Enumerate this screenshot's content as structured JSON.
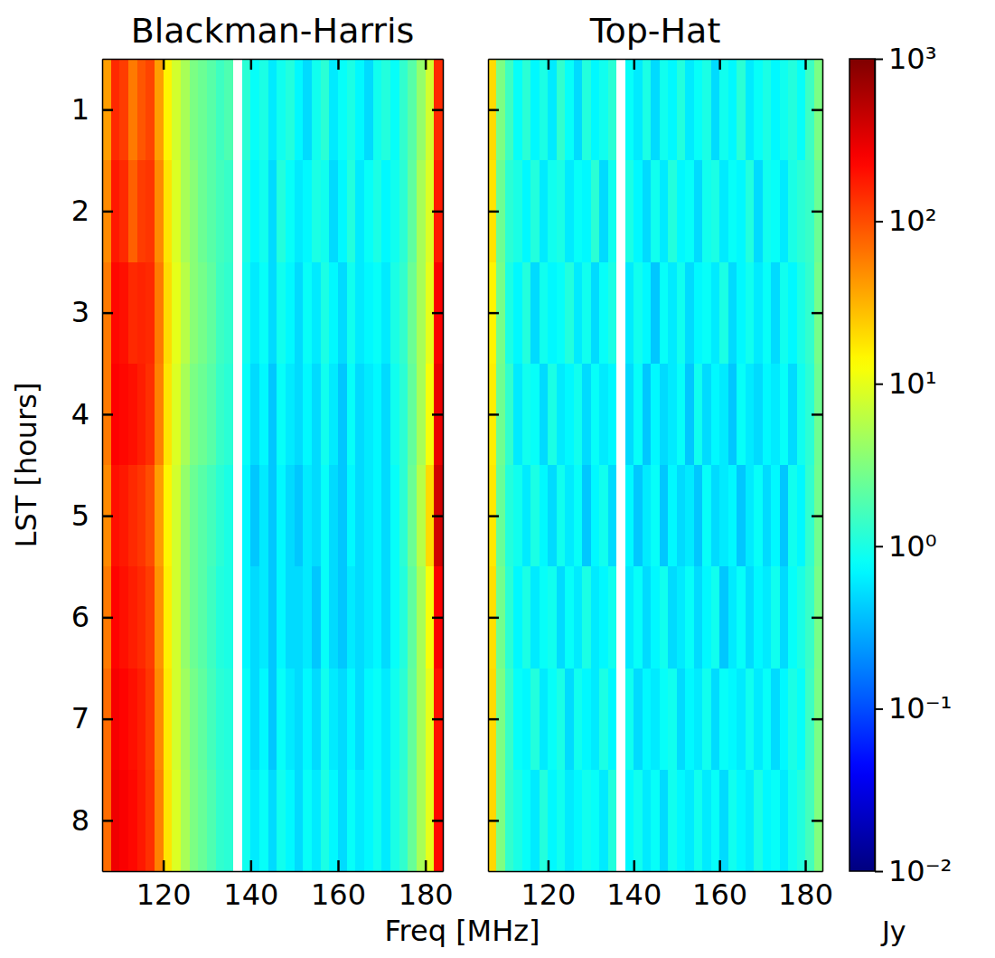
{
  "chart_data": {
    "type": "heatmap",
    "xlabel": "Freq [MHz]",
    "ylabel": "LST [hours]",
    "colorbar": {
      "log": true,
      "lim": [
        0.01,
        1000
      ],
      "ticks": [
        {
          "value": 0.01,
          "label": "10⁻²"
        },
        {
          "value": 0.1,
          "label": "10⁻¹"
        },
        {
          "value": 1,
          "label": "10⁰"
        },
        {
          "value": 10,
          "label": "10¹"
        },
        {
          "value": 100,
          "label": "10²"
        },
        {
          "value": 1000,
          "label": "10³"
        }
      ],
      "label": "Jy"
    },
    "panels": [
      {
        "title": "Blackman-Harris",
        "xlim": [
          106,
          184
        ],
        "ylim": [
          8.5,
          0.5
        ],
        "xticks": [
          120,
          140,
          160,
          180
        ],
        "yticks": [
          1,
          2,
          3,
          4,
          5,
          6,
          7,
          8
        ],
        "x_bins": [
          106,
          108,
          110,
          112,
          114,
          116,
          118,
          120,
          122,
          124,
          126,
          128,
          130,
          132,
          134,
          136,
          138,
          140,
          142,
          144,
          146,
          148,
          150,
          152,
          154,
          156,
          158,
          160,
          162,
          164,
          166,
          168,
          170,
          172,
          174,
          176,
          178,
          180,
          182,
          184
        ],
        "y_bins": [
          0.5,
          1.5,
          2.5,
          3.5,
          4.5,
          5.5,
          6.5,
          7.5,
          8.5
        ],
        "values": [
          [
            40,
            150,
            120,
            60,
            90,
            110,
            40,
            15,
            8,
            5,
            3,
            2.5,
            2,
            1.5,
            1.8,
            null,
            1.2,
            0.8,
            1.0,
            0.6,
            0.9,
            1.1,
            0.7,
            0.5,
            0.9,
            1.2,
            0.6,
            0.8,
            1.0,
            0.7,
            0.5,
            0.9,
            1.1,
            0.8,
            1.3,
            2,
            4,
            8,
            150
          ],
          [
            50,
            180,
            150,
            80,
            120,
            130,
            50,
            18,
            9,
            5,
            3.5,
            2.5,
            2,
            1.6,
            1.4,
            null,
            1.0,
            0.7,
            0.9,
            0.5,
            1.1,
            0.8,
            0.6,
            0.7,
            1.0,
            0.9,
            0.5,
            0.7,
            1.1,
            0.6,
            0.8,
            1.0,
            0.7,
            0.9,
            1.2,
            2.2,
            5,
            9,
            180
          ],
          [
            60,
            220,
            200,
            150,
            160,
            150,
            60,
            20,
            10,
            6,
            3.5,
            2.8,
            2.2,
            1.5,
            1.3,
            null,
            0.9,
            0.6,
            0.8,
            0.5,
            0.9,
            0.7,
            0.5,
            0.8,
            0.6,
            1.0,
            0.7,
            0.5,
            0.9,
            0.6,
            0.7,
            0.8,
            0.6,
            1.0,
            1.3,
            2.5,
            5,
            10,
            250
          ],
          [
            60,
            240,
            220,
            200,
            170,
            140,
            55,
            18,
            9,
            5,
            3,
            2.5,
            2,
            1.4,
            1.2,
            null,
            0.8,
            0.5,
            0.7,
            0.4,
            0.8,
            0.6,
            0.5,
            0.7,
            0.5,
            0.9,
            0.6,
            0.4,
            0.8,
            0.5,
            0.6,
            0.7,
            0.5,
            0.9,
            1.2,
            2.3,
            5,
            12,
            300
          ],
          [
            50,
            200,
            180,
            150,
            130,
            100,
            40,
            15,
            8,
            4,
            2.5,
            2,
            1.6,
            1.2,
            1.0,
            null,
            0.7,
            0.4,
            0.6,
            0.4,
            0.7,
            0.5,
            0.4,
            0.6,
            0.5,
            0.8,
            0.5,
            0.4,
            0.7,
            0.5,
            0.6,
            0.7,
            0.5,
            0.8,
            1.2,
            2.5,
            6,
            20,
            400
          ],
          [
            60,
            230,
            200,
            170,
            150,
            120,
            45,
            16,
            8,
            4,
            2.5,
            2,
            1.5,
            1.1,
            1.0,
            null,
            0.7,
            0.5,
            0.6,
            0.4,
            0.7,
            0.5,
            0.5,
            0.6,
            0.4,
            0.8,
            0.5,
            0.4,
            0.6,
            0.5,
            0.6,
            0.7,
            0.5,
            0.8,
            1.1,
            2.2,
            5,
            12,
            250
          ],
          [
            70,
            260,
            230,
            200,
            170,
            130,
            50,
            17,
            8,
            4.5,
            2.8,
            2.2,
            1.6,
            1.2,
            1.1,
            null,
            0.8,
            0.5,
            0.7,
            0.4,
            0.8,
            0.6,
            0.5,
            0.7,
            0.5,
            0.9,
            0.6,
            0.5,
            0.7,
            0.5,
            0.7,
            0.8,
            0.6,
            0.9,
            1.2,
            2.3,
            5,
            10,
            200
          ],
          [
            70,
            280,
            250,
            220,
            180,
            140,
            55,
            18,
            9,
            5,
            3,
            2.4,
            1.8,
            1.3,
            1.2,
            null,
            0.9,
            0.6,
            0.8,
            0.5,
            0.9,
            0.7,
            0.5,
            0.8,
            0.6,
            1.0,
            0.7,
            0.5,
            0.8,
            0.6,
            0.7,
            0.9,
            0.6,
            1.0,
            1.3,
            2.4,
            5,
            10,
            220
          ]
        ]
      },
      {
        "title": "Top-Hat",
        "tick_labels": "x",
        "xlim": [
          106,
          184
        ],
        "ylim": [
          8.5,
          0.5
        ],
        "xticks": [
          120,
          140,
          160,
          180
        ],
        "yticks": [
          1,
          2,
          3,
          4,
          5,
          6,
          7,
          8
        ],
        "x_bins": [
          106,
          108,
          110,
          112,
          114,
          116,
          118,
          120,
          122,
          124,
          126,
          128,
          130,
          132,
          134,
          136,
          138,
          140,
          142,
          144,
          146,
          148,
          150,
          152,
          154,
          156,
          158,
          160,
          162,
          164,
          166,
          168,
          170,
          172,
          174,
          176,
          178,
          180,
          182,
          184
        ],
        "y_bins": [
          0.5,
          1.5,
          2.5,
          3.5,
          4.5,
          5.5,
          6.5,
          7.5,
          8.5
        ],
        "values": [
          [
            20,
            3,
            1.5,
            0.8,
            1.2,
            0.7,
            1.0,
            0.6,
            1.3,
            0.8,
            0.5,
            1.1,
            0.7,
            0.9,
            1.2,
            null,
            0.8,
            0.6,
            1.0,
            0.5,
            0.9,
            0.7,
            1.1,
            0.6,
            0.8,
            1.0,
            0.5,
            0.9,
            0.7,
            1.2,
            0.6,
            0.8,
            1.0,
            0.7,
            0.9,
            1.1,
            0.8,
            1.5,
            3
          ],
          [
            18,
            2.5,
            1.2,
            1.0,
            0.7,
            1.1,
            0.6,
            0.9,
            1.0,
            0.6,
            0.8,
            0.7,
            1.2,
            0.5,
            0.9,
            null,
            1.0,
            0.7,
            0.5,
            0.9,
            0.6,
            1.1,
            0.7,
            0.8,
            0.5,
            0.9,
            1.0,
            0.6,
            0.8,
            0.7,
            1.1,
            0.5,
            0.9,
            0.8,
            0.6,
            1.0,
            1.2,
            1.4,
            2.5
          ],
          [
            15,
            2.8,
            1.0,
            0.7,
            1.1,
            0.5,
            0.9,
            0.7,
            0.8,
            1.1,
            0.6,
            0.9,
            0.5,
            0.8,
            1.0,
            null,
            0.6,
            0.9,
            0.7,
            0.4,
            0.8,
            0.6,
            0.9,
            0.5,
            0.7,
            0.8,
            0.6,
            1.0,
            0.5,
            0.7,
            0.9,
            0.6,
            0.8,
            0.5,
            0.9,
            0.7,
            1.0,
            1.3,
            2.8
          ],
          [
            16,
            2.6,
            1.3,
            0.6,
            0.9,
            0.8,
            0.5,
            1.0,
            0.6,
            0.7,
            0.9,
            0.5,
            0.8,
            0.6,
            0.7,
            null,
            0.5,
            0.8,
            0.4,
            0.7,
            0.5,
            0.6,
            0.8,
            0.4,
            0.9,
            0.5,
            0.7,
            0.6,
            0.4,
            0.8,
            0.6,
            0.5,
            0.7,
            0.6,
            0.8,
            0.5,
            0.9,
            1.2,
            2.6
          ],
          [
            17,
            2.4,
            1.1,
            0.9,
            0.6,
            1.0,
            0.7,
            0.5,
            0.9,
            0.6,
            0.8,
            0.4,
            0.7,
            0.9,
            0.5,
            null,
            0.7,
            0.4,
            0.6,
            0.8,
            0.4,
            0.7,
            0.5,
            0.6,
            0.4,
            0.8,
            0.5,
            0.6,
            0.7,
            0.4,
            0.6,
            0.8,
            0.5,
            0.7,
            0.4,
            0.9,
            0.7,
            1.3,
            2.7
          ],
          [
            19,
            2.7,
            1.2,
            0.7,
            1.0,
            0.6,
            0.8,
            0.9,
            0.5,
            0.8,
            0.6,
            1.0,
            0.6,
            0.7,
            0.9,
            null,
            0.6,
            0.8,
            0.5,
            0.7,
            0.9,
            0.5,
            0.6,
            0.8,
            0.5,
            0.7,
            0.9,
            0.4,
            0.6,
            0.8,
            0.5,
            0.7,
            0.6,
            0.9,
            0.5,
            0.8,
            1.0,
            1.4,
            2.9
          ],
          [
            20,
            3,
            1.4,
            0.8,
            0.7,
            1.1,
            0.6,
            0.8,
            1.0,
            0.5,
            0.9,
            0.7,
            0.6,
            1.0,
            0.7,
            null,
            0.9,
            0.5,
            0.7,
            0.6,
            0.8,
            0.9,
            0.5,
            0.7,
            0.6,
            0.9,
            0.5,
            0.8,
            0.7,
            0.6,
            0.9,
            0.6,
            0.8,
            0.5,
            0.7,
            1.0,
            0.8,
            1.5,
            3
          ],
          [
            21,
            3.1,
            1.3,
            1.0,
            0.8,
            0.6,
            1.1,
            0.7,
            0.9,
            0.6,
            0.7,
            0.9,
            0.8,
            0.6,
            1.1,
            null,
            0.7,
            0.9,
            0.6,
            0.8,
            0.5,
            0.9,
            0.7,
            0.6,
            0.9,
            0.6,
            0.8,
            0.5,
            0.9,
            0.7,
            0.6,
            1.0,
            0.7,
            0.8,
            0.6,
            0.9,
            1.1,
            1.6,
            3.2
          ]
        ]
      }
    ]
  }
}
